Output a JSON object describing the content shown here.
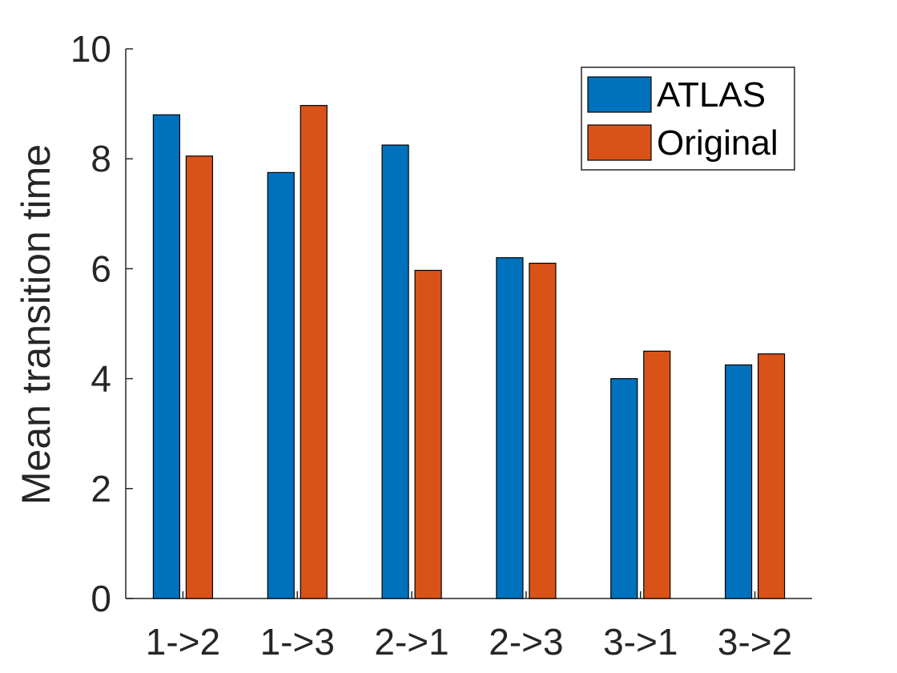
{
  "chart_data": {
    "type": "bar",
    "title": "",
    "xlabel": "",
    "ylabel": "Mean transition time",
    "categories": [
      "1->2",
      "1->3",
      "2->1",
      "2->3",
      "3->1",
      "3->2"
    ],
    "series": [
      {
        "name": "ATLAS",
        "color": "#0072BD",
        "values": [
          8.8,
          7.75,
          8.25,
          6.2,
          4.0,
          4.25
        ]
      },
      {
        "name": "Original",
        "color": "#D95319",
        "values": [
          8.05,
          8.97,
          5.97,
          6.1,
          4.5,
          4.45
        ]
      }
    ],
    "ylim": [
      0,
      10
    ],
    "yticks": [
      "0",
      "2",
      "4",
      "6",
      "8",
      "10"
    ],
    "grid": false,
    "legend_position": "top-right"
  }
}
